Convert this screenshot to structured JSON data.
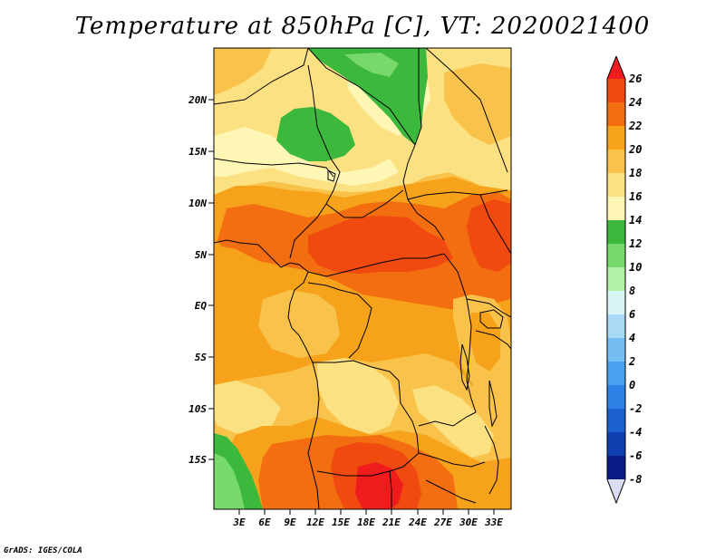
{
  "title": "Temperature at 850hPa [C], VT: 2020021400",
  "credit": "GrADS: IGES/COLA",
  "lat_labels": [
    "20N",
    "15N",
    "10N",
    "5N",
    "EQ",
    "5S",
    "10S",
    "15S"
  ],
  "lon_labels": [
    "3E",
    "6E",
    "9E",
    "12E",
    "15E",
    "18E",
    "21E",
    "24E",
    "27E",
    "30E",
    "33E"
  ],
  "colorbar": {
    "labels": [
      "26",
      "24",
      "22",
      "20",
      "18",
      "16",
      "14",
      "12",
      "10",
      "8",
      "6",
      "4",
      "2",
      "0",
      "-2",
      "-4",
      "-6",
      "-8"
    ],
    "colors": [
      "#ee1c1c",
      "#f04a10",
      "#f36e10",
      "#f6a31b",
      "#f9c24a",
      "#fce183",
      "#fef6b5",
      "#3cb93c",
      "#77d96c",
      "#b3f0a8",
      "#d8f5f6",
      "#a8d9f5",
      "#75bef4",
      "#4a9ff0",
      "#2f80e6",
      "#1c5fce",
      "#0e3fb0",
      "#0a1a86",
      "#dcdcf5"
    ]
  },
  "field_colors": {
    "t14": "#fef6b5",
    "t16": "#fce183",
    "t18": "#f9c24a",
    "t20": "#f6a31b",
    "t22": "#f36e10",
    "t24": "#f04a10",
    "t26": "#ee1c1c",
    "g12": "#3cb93c",
    "g10": "#77d96c"
  }
}
